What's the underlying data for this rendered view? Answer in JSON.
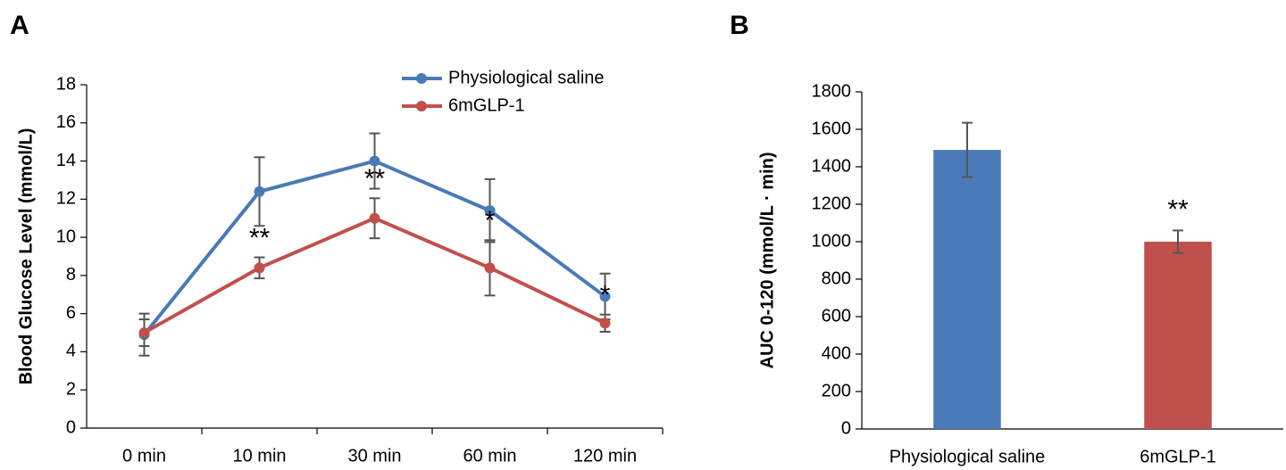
{
  "chart_data": [
    {
      "type": "line",
      "panel": "A",
      "ylabel": "Blood Glucose Level (mmol/L)",
      "categories": [
        "0 min",
        "10 min",
        "30 min",
        "60 min",
        "120 min"
      ],
      "series": [
        {
          "name": "Physiological saline",
          "color": "#4a7ab5",
          "values": [
            4.9,
            12.4,
            14.0,
            11.4,
            6.9
          ],
          "errors": [
            1.1,
            1.8,
            1.45,
            1.65,
            1.2
          ]
        },
        {
          "name": "6mGLP-1",
          "color": "#c0504d",
          "values": [
            5.0,
            8.4,
            11.0,
            8.4,
            5.5
          ],
          "errors": [
            0.7,
            0.55,
            1.05,
            1.45,
            0.45
          ]
        }
      ],
      "annotations": [
        null,
        "**",
        "**",
        "*",
        "*"
      ],
      "ylim": [
        0,
        18
      ],
      "yticks": [
        0,
        2,
        4,
        6,
        8,
        10,
        12,
        14,
        16,
        18
      ],
      "legend": "top-right"
    },
    {
      "type": "bar",
      "panel": "B",
      "ylabel": "AUC 0-120 (mmol/L · min)",
      "categories": [
        "Physiological saline",
        "6mGLP-1"
      ],
      "values": [
        1490,
        1000
      ],
      "errors": [
        145,
        60
      ],
      "colors": [
        "#4a7ab5",
        "#c0504d"
      ],
      "annotations": [
        null,
        "**"
      ],
      "ylim": [
        0,
        1800
      ],
      "yticks": [
        0,
        200,
        400,
        600,
        800,
        1000,
        1200,
        1400,
        1600,
        1800
      ]
    }
  ]
}
